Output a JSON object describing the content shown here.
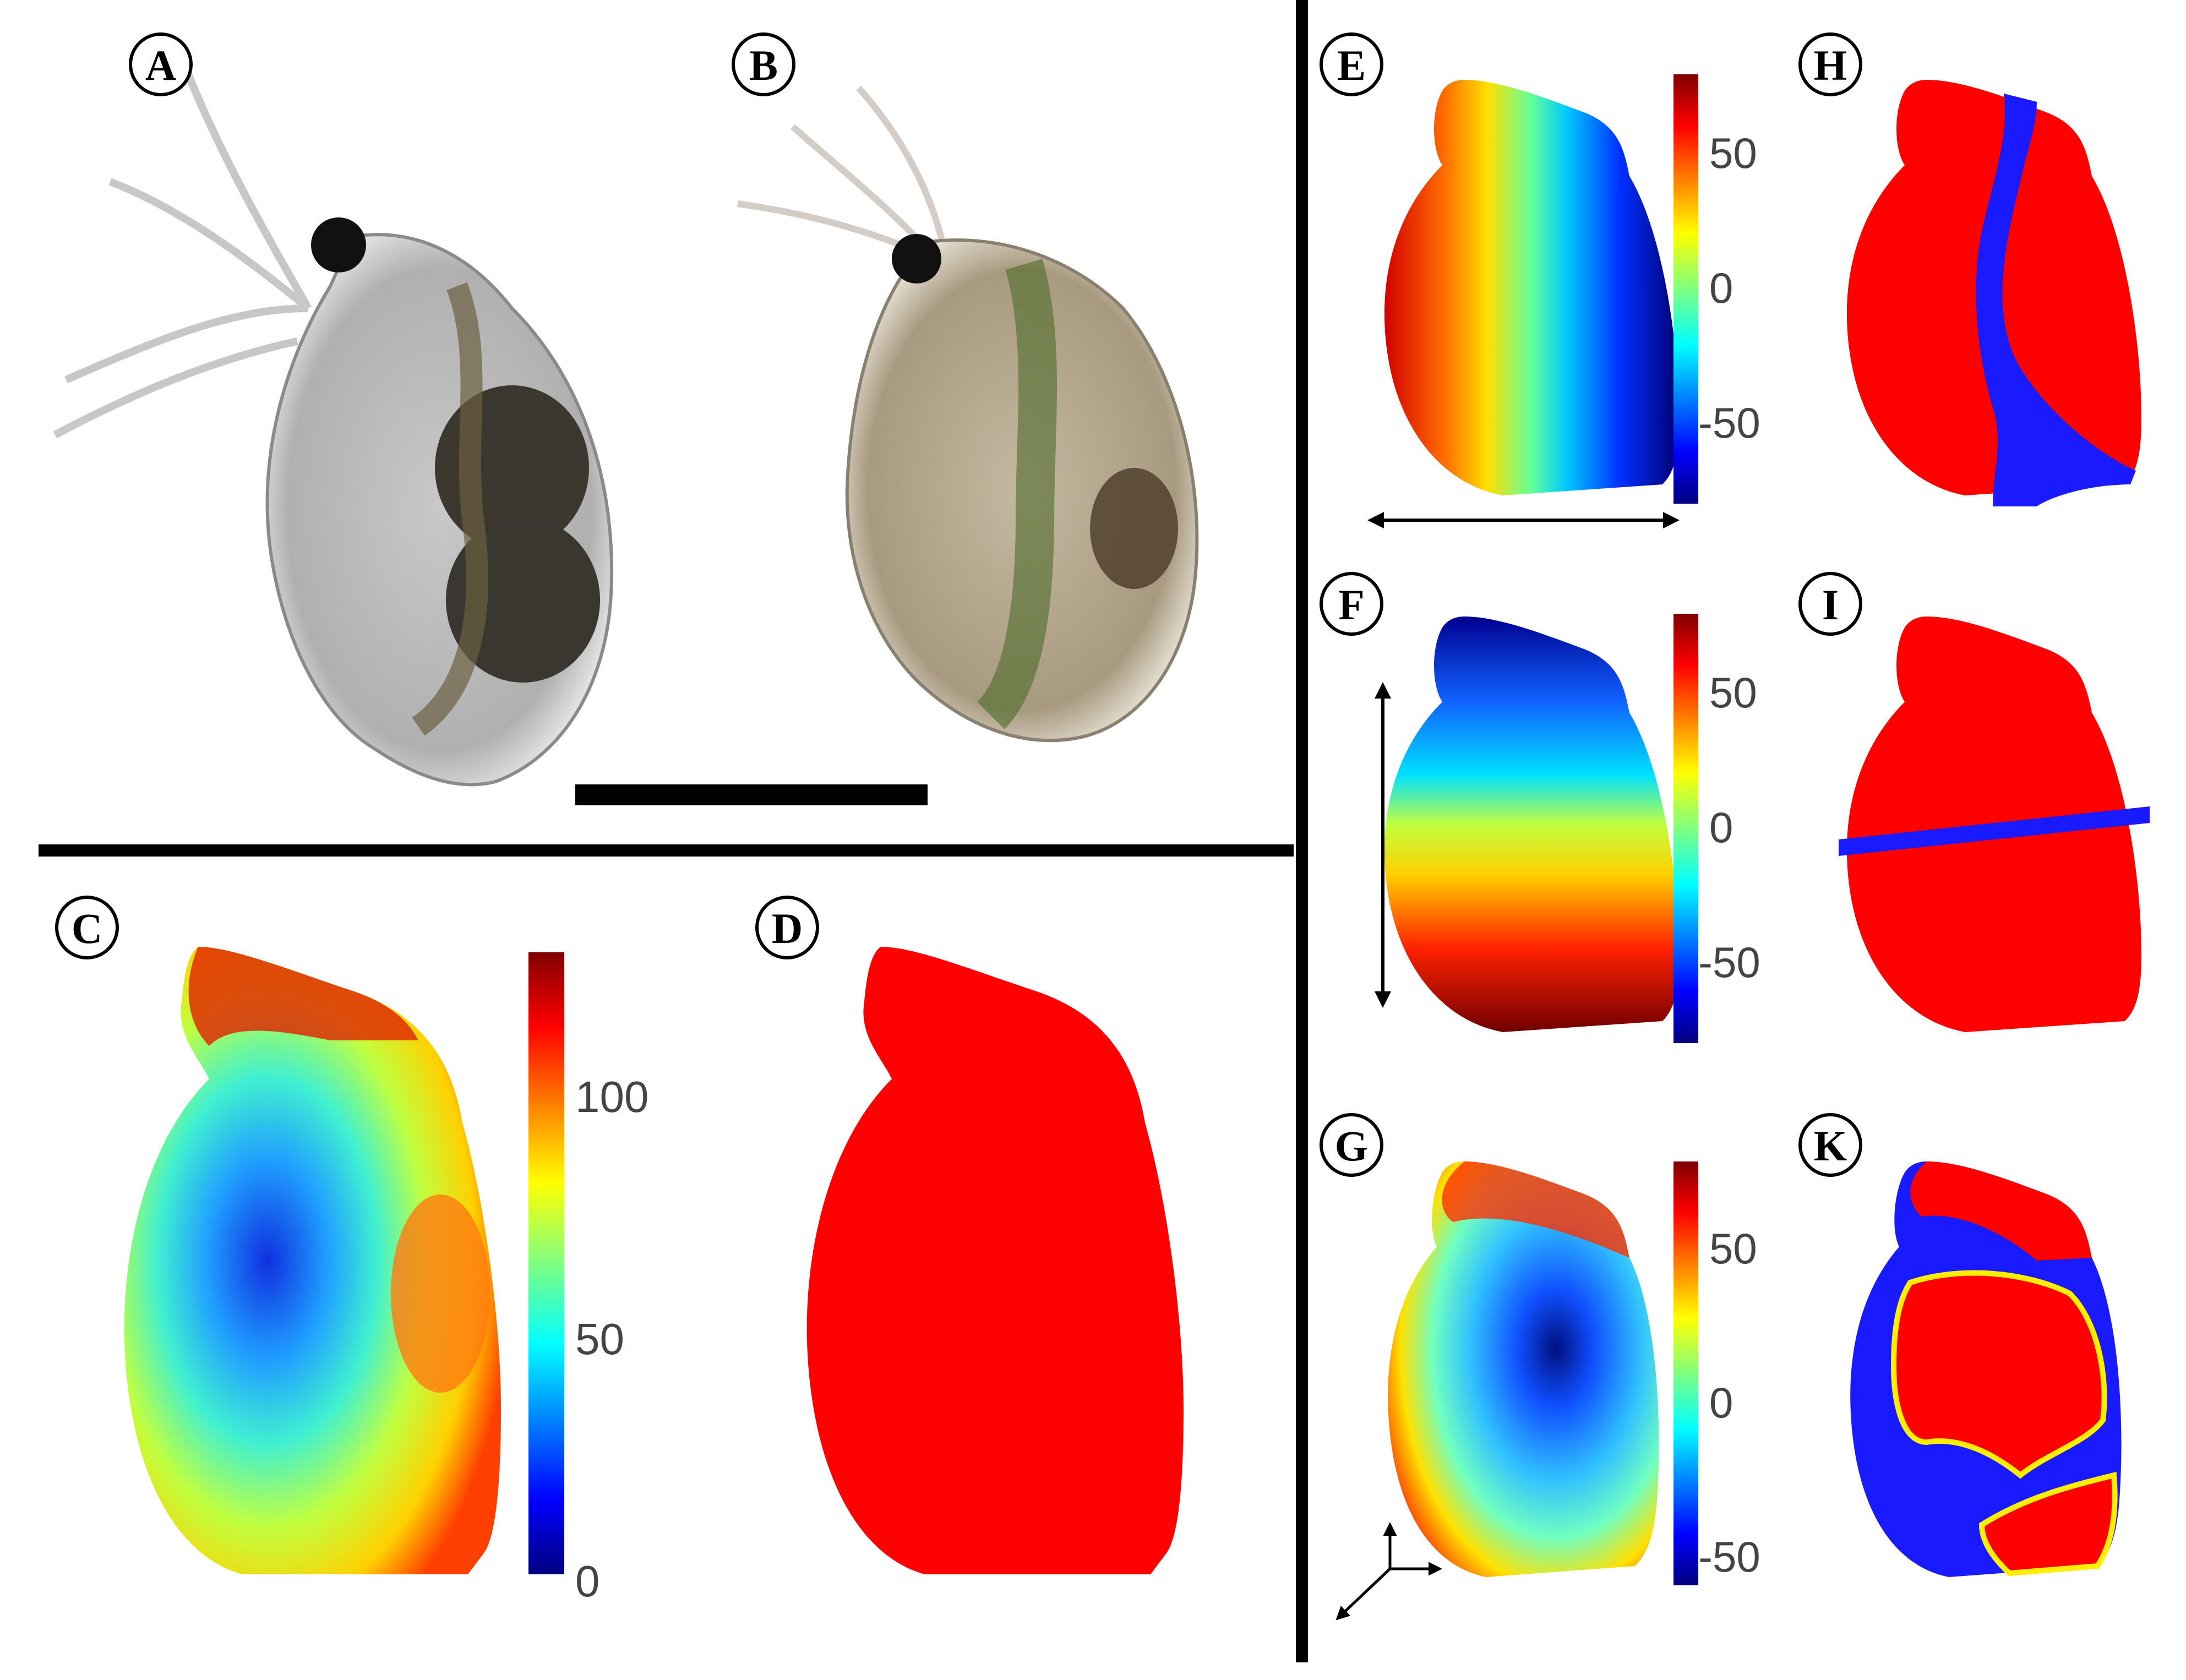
{
  "panels": [
    {
      "id": "A",
      "letter": "A"
    },
    {
      "id": "B",
      "letter": "B"
    },
    {
      "id": "C",
      "letter": "C"
    },
    {
      "id": "D",
      "letter": "D"
    },
    {
      "id": "E",
      "letter": "E"
    },
    {
      "id": "F",
      "letter": "F"
    },
    {
      "id": "G",
      "letter": "G"
    },
    {
      "id": "H",
      "letter": "H"
    },
    {
      "id": "I",
      "letter": "I"
    },
    {
      "id": "K",
      "letter": "K"
    }
  ],
  "colorbars": {
    "C": {
      "ticks": [
        "100",
        "50",
        "0"
      ]
    },
    "E": {
      "ticks": [
        "50",
        "0",
        "-50"
      ]
    },
    "F": {
      "ticks": [
        "50",
        "0",
        "-50"
      ]
    },
    "G": {
      "ticks": [
        "50",
        "0",
        "-50"
      ]
    }
  },
  "colors": {
    "mask_red": "#ff0000",
    "mask_blue": "#1a1aff",
    "mask_yellow": "#ffee00",
    "divider": "#000000"
  },
  "icons": [
    "double-arrow-horizontal-icon",
    "double-arrow-vertical-icon",
    "axes-triad-icon",
    "scale-bar"
  ]
}
